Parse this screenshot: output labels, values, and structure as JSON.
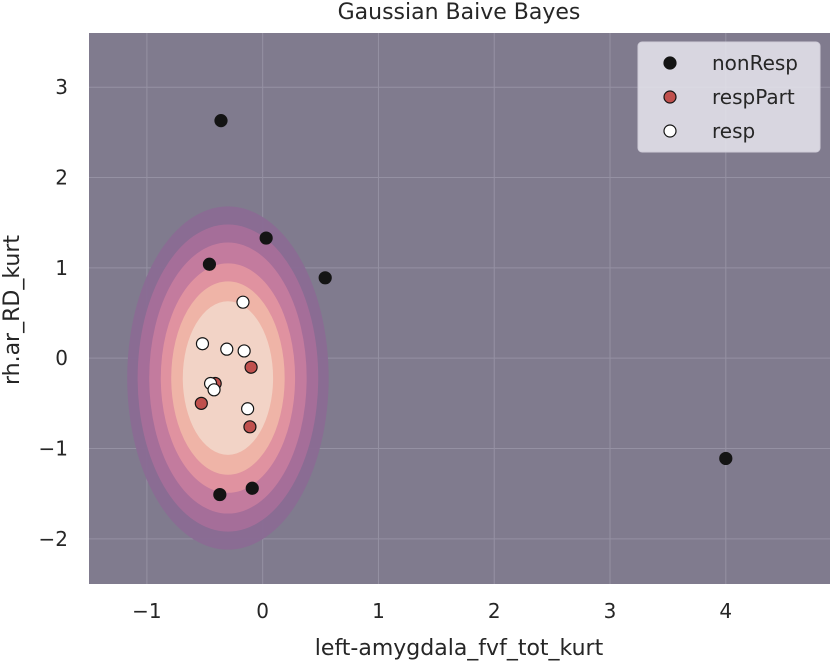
{
  "chart_data": {
    "type": "scatter",
    "title": "Gaussian Baive Bayes",
    "xlabel": "left-amygdala_fvf_tot_kurt",
    "ylabel": "rh.ar_RD_kurt",
    "xlim": [
      -1.5,
      4.9
    ],
    "ylim": [
      -2.5,
      3.6
    ],
    "xticks": [
      -1,
      0,
      1,
      2,
      3,
      4
    ],
    "yticks": [
      -2,
      -1,
      0,
      1,
      2,
      3
    ],
    "grid": true,
    "legend_position": "top-right",
    "background_color": "#807b8e",
    "grid_color": "#9591a3",
    "contour": {
      "center": [
        -0.3,
        -0.22
      ],
      "levels": [
        {
          "rx": 0.87,
          "ry": 1.9,
          "color": "#8a6c94"
        },
        {
          "rx": 0.78,
          "ry": 1.7,
          "color": "#a66f99"
        },
        {
          "rx": 0.68,
          "ry": 1.5,
          "color": "#c47b9e"
        },
        {
          "rx": 0.58,
          "ry": 1.27,
          "color": "#e193a0"
        },
        {
          "rx": 0.49,
          "ry": 1.07,
          "color": "#efb6a8"
        },
        {
          "rx": 0.39,
          "ry": 0.85,
          "color": "#f1d5c7"
        }
      ]
    },
    "series": [
      {
        "name": "nonResp",
        "color": "#141414",
        "points": [
          [
            -0.36,
            2.63
          ],
          [
            0.03,
            1.33
          ],
          [
            -0.46,
            1.04
          ],
          [
            0.54,
            0.89
          ],
          [
            -0.37,
            -1.51
          ],
          [
            -0.09,
            -1.44
          ],
          [
            4.0,
            -1.11
          ]
        ]
      },
      {
        "name": "respPart",
        "color": "#c0504d",
        "points": [
          [
            -0.41,
            -0.28
          ],
          [
            -0.1,
            -0.1
          ],
          [
            -0.53,
            -0.5
          ],
          [
            -0.11,
            -0.76
          ]
        ]
      },
      {
        "name": "resp",
        "color": "#ffffff",
        "points": [
          [
            -0.17,
            0.62
          ],
          [
            -0.52,
            0.16
          ],
          [
            -0.31,
            0.1
          ],
          [
            -0.16,
            0.08
          ],
          [
            -0.45,
            -0.28
          ],
          [
            -0.42,
            -0.35
          ],
          [
            -0.13,
            -0.56
          ]
        ]
      }
    ]
  }
}
